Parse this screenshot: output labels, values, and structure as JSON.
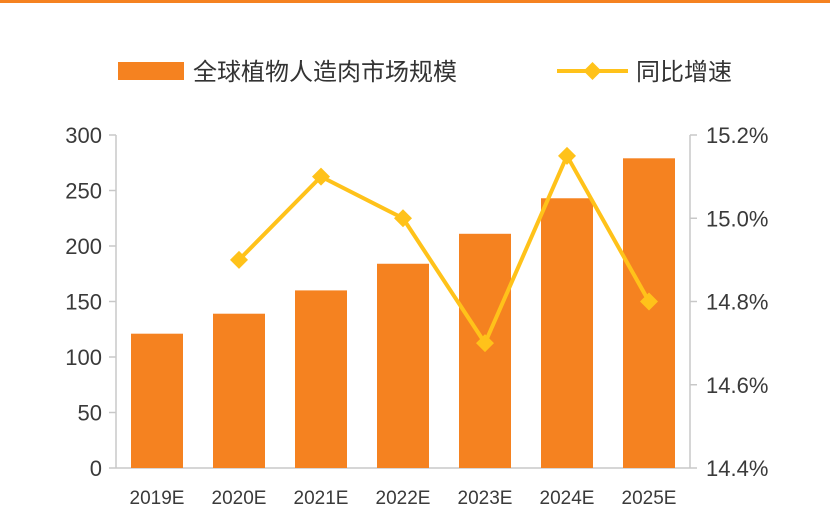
{
  "colors": {
    "bar": "#F58220",
    "line": "#FFC21A",
    "axis": "#C8C8C8",
    "top_rule": "#F58220"
  },
  "chart_data": {
    "type": "bar",
    "categories": [
      "2019E",
      "2020E",
      "2021E",
      "2022E",
      "2023E",
      "2024E",
      "2025E"
    ],
    "series": [
      {
        "name": "全球植物人造肉市场规模",
        "type": "bar",
        "axis": "left",
        "values": [
          121,
          139,
          160,
          184,
          211,
          243,
          279
        ]
      },
      {
        "name": "同比增速",
        "type": "line",
        "axis": "right",
        "values": [
          null,
          14.9,
          15.1,
          15.0,
          14.7,
          15.15,
          14.8
        ]
      }
    ],
    "y_left": {
      "lim": [
        0,
        300
      ],
      "ticks": [
        "0",
        "50",
        "100",
        "150",
        "200",
        "250",
        "300"
      ]
    },
    "y_right": {
      "lim": [
        14.4,
        15.2
      ],
      "ticks": [
        "14.4%",
        "14.6%",
        "14.8%",
        "15.0%",
        "15.2%"
      ]
    },
    "legend_position": "top",
    "grid": false
  }
}
